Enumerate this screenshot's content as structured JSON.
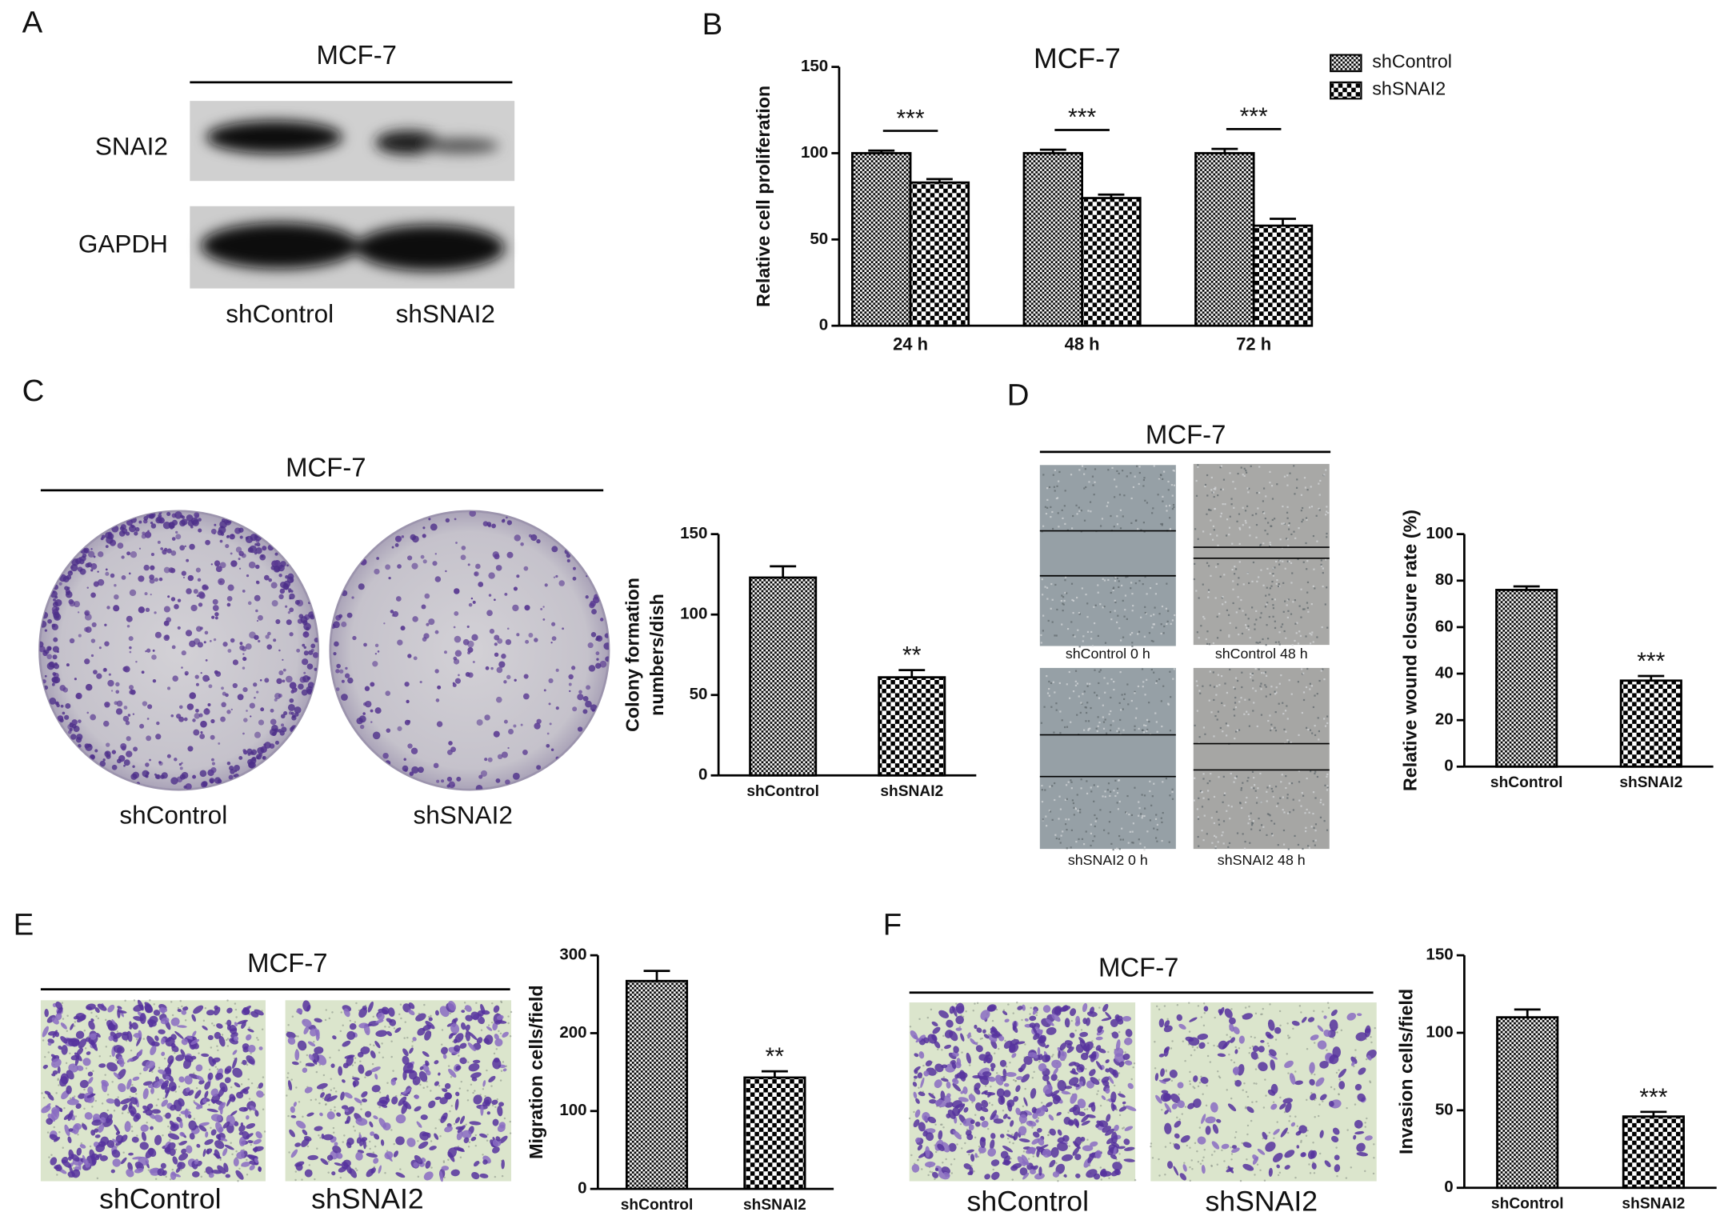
{
  "panel_labels": [
    "A",
    "B",
    "C",
    "D",
    "E",
    "F"
  ],
  "western_blot": {
    "title": "MCF-7",
    "rows": [
      "SNAI2",
      "GAPDH"
    ],
    "lanes": [
      "shControl",
      "shSNAI2"
    ]
  },
  "colony_formation": {
    "title": "MCF-7",
    "labels": [
      "shControl",
      "shSNAI2"
    ]
  },
  "wound_healing": {
    "title": "MCF-7",
    "captions": [
      "shControl 0 h",
      "shControl 48 h",
      "shSNAI2 0 h",
      "shSNAI2 48 h"
    ]
  },
  "migration": {
    "title": "MCF-7",
    "labels": [
      "shControl",
      "shSNAI2"
    ]
  },
  "invasion": {
    "title": "MCF-7",
    "labels": [
      "shControl",
      "shSNAI2"
    ]
  },
  "chart_data": [
    {
      "type": "grouped_bar",
      "title": "MCF-7",
      "ylabel": "Relative cell proliferation",
      "categories": [
        "24 h",
        "48 h",
        "72 h"
      ],
      "series": [
        {
          "name": "shControl",
          "color": "#000000",
          "pattern": "fine-checker",
          "values": [
            100,
            100,
            100
          ],
          "errors": [
            1.5,
            2,
            2.5
          ]
        },
        {
          "name": "shSNAI2",
          "color": "#000000",
          "pattern": "coarse-checker",
          "values": [
            83,
            74,
            58
          ],
          "errors": [
            2,
            2,
            4
          ],
          "significance": [
            "***",
            "***",
            "***"
          ]
        }
      ],
      "ylim": [
        0,
        150
      ],
      "yticks": [
        0,
        50,
        100,
        150
      ],
      "legend": "upper-right"
    },
    {
      "type": "bar",
      "ylabel": [
        "Colony formation",
        "numbers/dish"
      ],
      "categories": [
        "shControl",
        "shSNAI2"
      ],
      "values": [
        123,
        61
      ],
      "errors": [
        7,
        4.5
      ],
      "significance": [
        null,
        "**"
      ],
      "patterns": [
        "fine-checker",
        "coarse-checker"
      ],
      "color": "#000000",
      "ylim": [
        0,
        150
      ],
      "yticks": [
        0,
        50,
        100,
        150
      ]
    },
    {
      "type": "bar",
      "ylabel": "Relative wound closure rate (%)",
      "categories": [
        "shControl",
        "shSNAI2"
      ],
      "values": [
        76,
        37
      ],
      "errors": [
        1.5,
        2
      ],
      "significance": [
        null,
        "***"
      ],
      "patterns": [
        "fine-checker",
        "coarse-checker"
      ],
      "color": "#000000",
      "ylim": [
        0,
        100
      ],
      "yticks": [
        0,
        20,
        40,
        60,
        80,
        100
      ]
    },
    {
      "type": "bar",
      "ylabel": "Migration cells/field",
      "categories": [
        "shControl",
        "shSNAI2"
      ],
      "values": [
        267,
        143
      ],
      "errors": [
        13,
        8
      ],
      "significance": [
        null,
        "**"
      ],
      "patterns": [
        "fine-checker",
        "coarse-checker"
      ],
      "color": "#000000",
      "ylim": [
        0,
        300
      ],
      "yticks": [
        0,
        100,
        200,
        300
      ]
    },
    {
      "type": "bar",
      "ylabel": "Invasion cells/field",
      "categories": [
        "shControl",
        "shSNAI2"
      ],
      "values": [
        110,
        46
      ],
      "errors": [
        5,
        3
      ],
      "significance": [
        null,
        "***"
      ],
      "patterns": [
        "fine-checker",
        "coarse-checker"
      ],
      "color": "#000000",
      "ylim": [
        0,
        150
      ],
      "yticks": [
        0,
        50,
        100,
        150
      ]
    }
  ]
}
